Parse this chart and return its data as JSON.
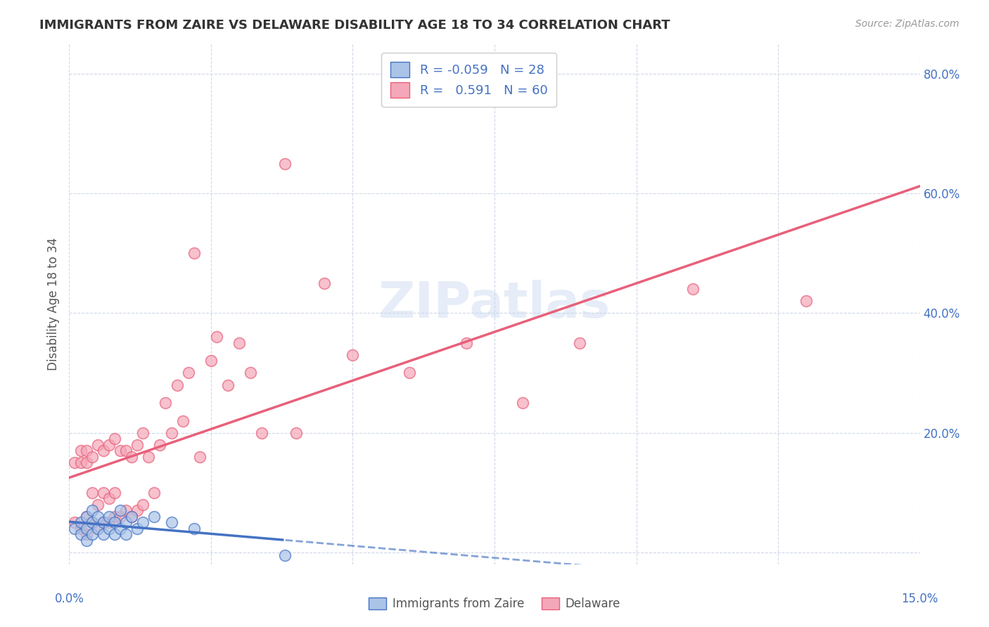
{
  "title": "IMMIGRANTS FROM ZAIRE VS DELAWARE DISABILITY AGE 18 TO 34 CORRELATION CHART",
  "source": "Source: ZipAtlas.com",
  "ylabel": "Disability Age 18 to 34",
  "ylabel_right_ticks": [
    "80.0%",
    "60.0%",
    "40.0%",
    "20.0%"
  ],
  "ylabel_right_values": [
    0.8,
    0.6,
    0.4,
    0.2
  ],
  "xlim": [
    0.0,
    0.15
  ],
  "ylim": [
    -0.02,
    0.85
  ],
  "background_color": "#ffffff",
  "grid_color": "#d0d8e8",
  "zaire_scatter_color": "#aac4e8",
  "zaire_line_color": "#4472c4",
  "delaware_scatter_color": "#f4a7b9",
  "delaware_line_color": "#e8607a",
  "zaire_x": [
    0.001,
    0.002,
    0.002,
    0.003,
    0.003,
    0.003,
    0.004,
    0.004,
    0.004,
    0.005,
    0.005,
    0.006,
    0.006,
    0.007,
    0.007,
    0.008,
    0.008,
    0.009,
    0.009,
    0.01,
    0.01,
    0.011,
    0.012,
    0.013,
    0.015,
    0.018,
    0.022,
    0.038
  ],
  "zaire_y": [
    0.04,
    0.03,
    0.05,
    0.02,
    0.04,
    0.06,
    0.03,
    0.05,
    0.07,
    0.04,
    0.06,
    0.03,
    0.05,
    0.04,
    0.06,
    0.03,
    0.05,
    0.04,
    0.07,
    0.03,
    0.05,
    0.06,
    0.04,
    0.05,
    0.06,
    0.05,
    0.04,
    -0.005
  ],
  "delaware_x": [
    0.001,
    0.001,
    0.002,
    0.002,
    0.002,
    0.003,
    0.003,
    0.003,
    0.003,
    0.004,
    0.004,
    0.004,
    0.005,
    0.005,
    0.005,
    0.006,
    0.006,
    0.006,
    0.007,
    0.007,
    0.007,
    0.008,
    0.008,
    0.008,
    0.009,
    0.009,
    0.01,
    0.01,
    0.011,
    0.011,
    0.012,
    0.012,
    0.013,
    0.013,
    0.014,
    0.015,
    0.016,
    0.017,
    0.018,
    0.019,
    0.02,
    0.021,
    0.022,
    0.023,
    0.025,
    0.026,
    0.028,
    0.03,
    0.032,
    0.034,
    0.038,
    0.04,
    0.045,
    0.05,
    0.06,
    0.07,
    0.08,
    0.09,
    0.11,
    0.13
  ],
  "delaware_y": [
    0.05,
    0.15,
    0.04,
    0.15,
    0.17,
    0.03,
    0.06,
    0.15,
    0.17,
    0.05,
    0.1,
    0.16,
    0.04,
    0.08,
    0.18,
    0.05,
    0.1,
    0.17,
    0.05,
    0.09,
    0.18,
    0.06,
    0.1,
    0.19,
    0.06,
    0.17,
    0.07,
    0.17,
    0.06,
    0.16,
    0.07,
    0.18,
    0.08,
    0.2,
    0.16,
    0.1,
    0.18,
    0.25,
    0.2,
    0.28,
    0.22,
    0.3,
    0.5,
    0.16,
    0.32,
    0.36,
    0.28,
    0.35,
    0.3,
    0.2,
    0.65,
    0.2,
    0.45,
    0.33,
    0.3,
    0.35,
    0.25,
    0.35,
    0.44,
    0.42
  ]
}
